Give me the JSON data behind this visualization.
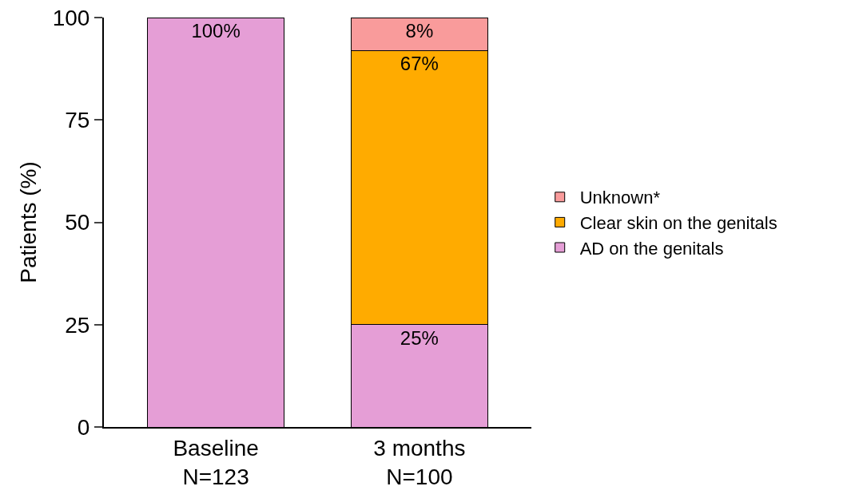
{
  "chart_data": {
    "type": "bar",
    "stacked": true,
    "ylabel": "Patients (%)",
    "categories": [
      "Baseline\nN=123",
      "3 months\nN=100"
    ],
    "ylim": [
      0,
      100
    ],
    "yticks": [
      0,
      25,
      50,
      75,
      100
    ],
    "grid": false,
    "legend": "right",
    "series": [
      {
        "name": "AD on the genitals",
        "color": "#e59ed6",
        "values": [
          100,
          25
        ],
        "value_labels": [
          "100%",
          "25%"
        ]
      },
      {
        "name": "Clear skin on the genitals",
        "color": "#ffab00",
        "values": [
          null,
          67
        ],
        "value_labels": [
          null,
          "67%"
        ]
      },
      {
        "name": "Unknown*",
        "color": "#f99b9b",
        "values": [
          null,
          8
        ],
        "value_labels": [
          null,
          "8%"
        ]
      }
    ]
  }
}
